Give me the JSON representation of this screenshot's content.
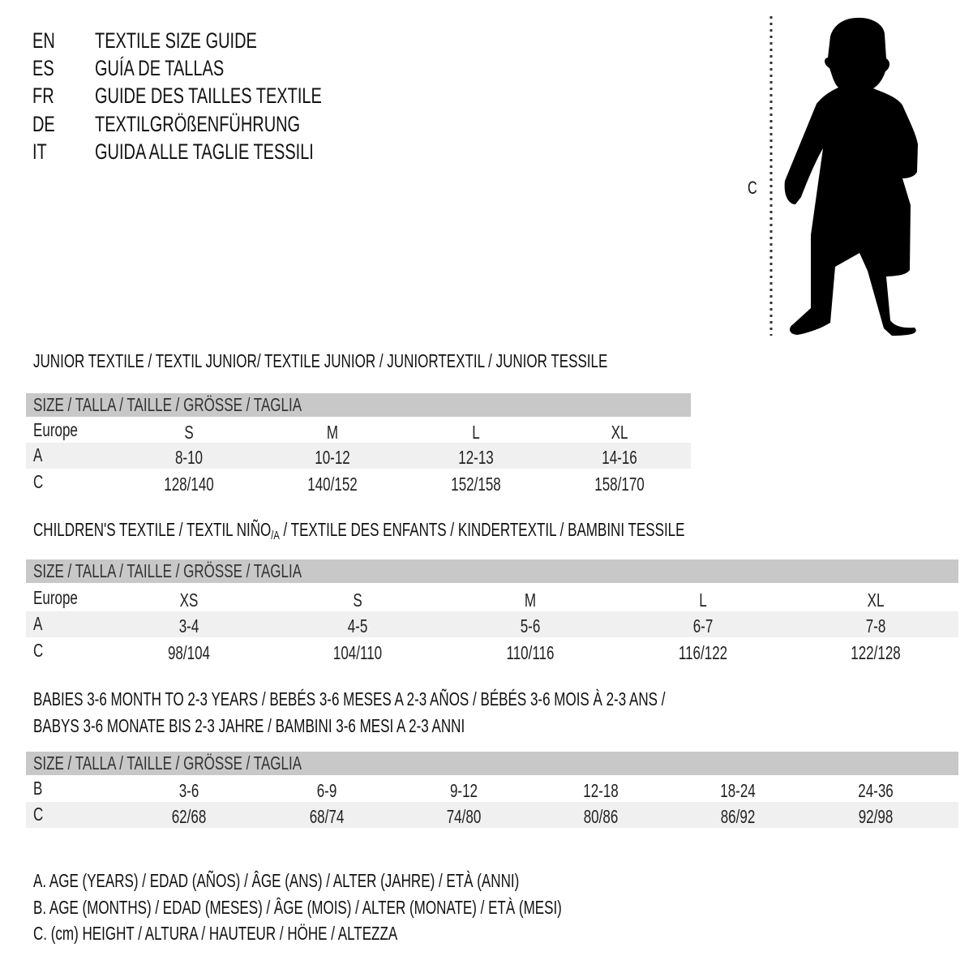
{
  "titles": [
    {
      "code": "EN",
      "text": "TEXTILE SIZE GUIDE"
    },
    {
      "code": "ES",
      "text": "GUÍA DE TALLAS"
    },
    {
      "code": "FR",
      "text": "GUIDE DES TAILLES TEXTILE"
    },
    {
      "code": "DE",
      "text": "TEXTILGRÖßENFÜHRUNG"
    },
    {
      "code": "IT",
      "text": "GUIDA ALLE TAGLIE TESSILI"
    }
  ],
  "figure": {
    "measure_label": "C",
    "icon": "child-silhouette-icon"
  },
  "colors": {
    "header_bar": "#c8c8c8",
    "alt_row": "#f0f0f0"
  },
  "sections": [
    {
      "title": "JUNIOR TEXTILE / TEXTIL JUNIOR/ TEXTILE JUNIOR / JUNIORTEXTIL / JUNIOR TESSILE",
      "header": "SIZE / TALLA / TAILLE / GRÖSSE / TAGLIA",
      "rows": [
        {
          "label": "Europe",
          "values": [
            "S",
            "M",
            "L",
            "XL"
          ]
        },
        {
          "label": "A",
          "values": [
            "8-10",
            "10-12",
            "12-13",
            "14-16"
          ]
        },
        {
          "label": "C",
          "values": [
            "128/140",
            "140/152",
            "152/158",
            "158/170"
          ]
        }
      ]
    },
    {
      "title_parts": [
        "CHILDREN'S TEXTILE / TEXTIL NIÑO",
        "/A",
        " / TEXTILE DES ENFANTS / KINDERTEXTIL / BAMBINI TESSILE"
      ],
      "header": "SIZE / TALLA / TAILLE / GRÖSSE / TAGLIA",
      "rows": [
        {
          "label": "Europe",
          "values": [
            "XS",
            "S",
            "M",
            "L",
            "XL"
          ]
        },
        {
          "label": "A",
          "values": [
            "3-4",
            "4-5",
            "5-6",
            "6-7",
            "7-8"
          ]
        },
        {
          "label": "C",
          "values": [
            "98/104",
            "104/110",
            "110/116",
            "116/122",
            "122/128"
          ]
        }
      ]
    },
    {
      "title_lines": [
        "BABIES 3-6 MONTH TO 2-3 YEARS / BEBÉS 3-6 MESES A 2-3 AÑOS / BÉBÉS 3-6 MOIS À 2-3 ANS /",
        "BABYS 3-6 MONATE BIS 2-3 JAHRE / BAMBINI 3-6 MESI A 2-3 ANNI"
      ],
      "header": "SIZE / TALLA / TAILLE / GRÖSSE / TAGLIA",
      "rows": [
        {
          "label": "B",
          "values": [
            "3-6",
            "6-9",
            "9-12",
            "12-18",
            "18-24",
            "24-36"
          ]
        },
        {
          "label": "C",
          "values": [
            "62/68",
            "68/74",
            "74/80",
            "80/86",
            "86/92",
            "92/98"
          ]
        }
      ]
    }
  ],
  "legend": [
    "A. AGE (YEARS) / EDAD (AÑOS) / ÂGE (ANS) / ALTER (JAHRE) / ETÀ (ANNI)",
    "B. AGE (MONTHS) / EDAD (MESES) / ÂGE (MOIS) / ALTER (MONATE) / ETÀ (MESI)",
    "C. (cm) HEIGHT / ALTURA / HAUTEUR / HÖHE / ALTEZZA"
  ]
}
